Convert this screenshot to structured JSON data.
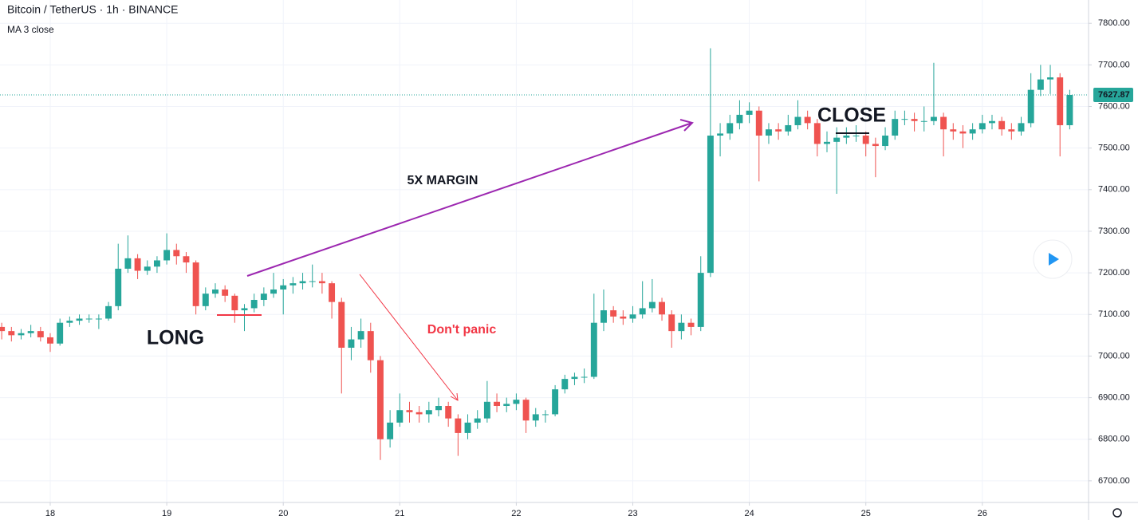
{
  "chart_data": {
    "type": "candlestick",
    "title": "Bitcoin / TetherUS · 1h · BINANCE",
    "indicator": "MA 3 close",
    "up_color": "#26a69a",
    "down_color": "#ef5350",
    "xlim": [
      -10.35,
      213.88
    ],
    "xticks": [
      {
        "value": 0,
        "label": "18"
      },
      {
        "value": 24,
        "label": "19"
      },
      {
        "value": 48,
        "label": "20"
      },
      {
        "value": 72,
        "label": "21"
      },
      {
        "value": 96,
        "label": "22"
      },
      {
        "value": 120,
        "label": "23"
      },
      {
        "value": 144,
        "label": "24"
      },
      {
        "value": 168,
        "label": "25"
      },
      {
        "value": 192,
        "label": "26"
      }
    ],
    "ylim": [
      6648,
      7856
    ],
    "yticks": [
      {
        "value": 6700,
        "label": "6700.00"
      },
      {
        "value": 6800,
        "label": "6800.00"
      },
      {
        "value": 6900,
        "label": "6900.00"
      },
      {
        "value": 7000,
        "label": "7000.00"
      },
      {
        "value": 7100,
        "label": "7100.00"
      },
      {
        "value": 7200,
        "label": "7200.00"
      },
      {
        "value": 7300,
        "label": "7300.00"
      },
      {
        "value": 7400,
        "label": "7400.00"
      },
      {
        "value": 7500,
        "label": "7500.00"
      },
      {
        "value": 7600,
        "label": "7600.00"
      },
      {
        "value": 7700,
        "label": "7700.00"
      },
      {
        "value": 7800,
        "label": "7800.00"
      }
    ],
    "grid": true,
    "current_price": 7627.87,
    "annotations": {
      "long": "LONG",
      "close": "CLOSE",
      "margin": "5X MARGIN",
      "panic": "Don't panic"
    },
    "x": [
      -10,
      -8,
      -6,
      -4,
      -2,
      0,
      2,
      4,
      6,
      8,
      10,
      12,
      14,
      16,
      18,
      20,
      22,
      24,
      26,
      28,
      30,
      32,
      34,
      36,
      38,
      40,
      42,
      44,
      46,
      48,
      50,
      52,
      54,
      56,
      58,
      60,
      62,
      64,
      66,
      68,
      70,
      72,
      74,
      76,
      78,
      80,
      82,
      84,
      86,
      88,
      90,
      92,
      94,
      96,
      98,
      100,
      102,
      104,
      106,
      108,
      110,
      112,
      114,
      116,
      118,
      120,
      122,
      124,
      126,
      128,
      130,
      132,
      134,
      136,
      138,
      140,
      142,
      144,
      146,
      148,
      150,
      152,
      154,
      156,
      158,
      160,
      162,
      164,
      166,
      168,
      170,
      172,
      174,
      176,
      178,
      180,
      182,
      184,
      186,
      188,
      190,
      192,
      194,
      196,
      198,
      200,
      202,
      204,
      206,
      208,
      210
    ],
    "ohlc": [
      [
        7070,
        7080,
        7040,
        7060
      ],
      [
        7060,
        7070,
        7035,
        7050
      ],
      [
        7050,
        7065,
        7040,
        7055
      ],
      [
        7055,
        7075,
        7045,
        7060
      ],
      [
        7060,
        7070,
        7035,
        7045
      ],
      [
        7045,
        7055,
        7010,
        7030
      ],
      [
        7030,
        7090,
        7025,
        7080
      ],
      [
        7080,
        7095,
        7070,
        7085
      ],
      [
        7085,
        7100,
        7075,
        7090
      ],
      [
        7090,
        7100,
        7080,
        7090
      ],
      [
        7090,
        7100,
        7065,
        7090
      ],
      [
        7090,
        7130,
        7085,
        7120
      ],
      [
        7120,
        7270,
        7110,
        7210
      ],
      [
        7210,
        7290,
        7200,
        7235
      ],
      [
        7235,
        7245,
        7185,
        7205
      ],
      [
        7205,
        7230,
        7195,
        7215
      ],
      [
        7215,
        7240,
        7200,
        7230
      ],
      [
        7230,
        7295,
        7220,
        7255
      ],
      [
        7255,
        7270,
        7220,
        7240
      ],
      [
        7240,
        7250,
        7200,
        7225
      ],
      [
        7225,
        7230,
        7100,
        7120
      ],
      [
        7120,
        7165,
        7110,
        7150
      ],
      [
        7150,
        7175,
        7140,
        7160
      ],
      [
        7160,
        7170,
        7130,
        7145
      ],
      [
        7145,
        7150,
        7080,
        7110
      ],
      [
        7110,
        7125,
        7060,
        7115
      ],
      [
        7115,
        7150,
        7105,
        7135
      ],
      [
        7135,
        7165,
        7120,
        7150
      ],
      [
        7150,
        7200,
        7140,
        7160
      ],
      [
        7160,
        7185,
        7100,
        7170
      ],
      [
        7170,
        7190,
        7150,
        7175
      ],
      [
        7175,
        7200,
        7160,
        7180
      ],
      [
        7180,
        7220,
        7165,
        7180
      ],
      [
        7180,
        7200,
        7150,
        7175
      ],
      [
        7175,
        7180,
        7090,
        7130
      ],
      [
        7130,
        7140,
        6910,
        7020
      ],
      [
        7020,
        7070,
        6990,
        7040
      ],
      [
        7040,
        7090,
        7020,
        7060
      ],
      [
        7060,
        7080,
        6960,
        6990
      ],
      [
        6990,
        7000,
        6750,
        6800
      ],
      [
        6800,
        6870,
        6780,
        6840
      ],
      [
        6840,
        6910,
        6830,
        6870
      ],
      [
        6870,
        6890,
        6840,
        6865
      ],
      [
        6865,
        6880,
        6840,
        6860
      ],
      [
        6860,
        6890,
        6840,
        6870
      ],
      [
        6870,
        6900,
        6855,
        6880
      ],
      [
        6880,
        6890,
        6830,
        6850
      ],
      [
        6850,
        6860,
        6760,
        6815
      ],
      [
        6815,
        6860,
        6800,
        6840
      ],
      [
        6840,
        6870,
        6825,
        6850
      ],
      [
        6850,
        6940,
        6840,
        6890
      ],
      [
        6890,
        6910,
        6865,
        6880
      ],
      [
        6880,
        6900,
        6865,
        6885
      ],
      [
        6885,
        6910,
        6870,
        6895
      ],
      [
        6895,
        6900,
        6815,
        6845
      ],
      [
        6845,
        6875,
        6830,
        6860
      ],
      [
        6860,
        6870,
        6840,
        6860
      ],
      [
        6860,
        6930,
        6855,
        6920
      ],
      [
        6920,
        6955,
        6910,
        6945
      ],
      [
        6945,
        6960,
        6930,
        6950
      ],
      [
        6950,
        6970,
        6935,
        6950
      ],
      [
        6950,
        7150,
        6945,
        7080
      ],
      [
        7080,
        7160,
        7060,
        7110
      ],
      [
        7110,
        7120,
        7080,
        7095
      ],
      [
        7095,
        7110,
        7075,
        7090
      ],
      [
        7090,
        7120,
        7080,
        7100
      ],
      [
        7100,
        7180,
        7090,
        7115
      ],
      [
        7115,
        7185,
        7105,
        7130
      ],
      [
        7130,
        7140,
        7085,
        7100
      ],
      [
        7100,
        7110,
        7020,
        7060
      ],
      [
        7060,
        7100,
        7040,
        7080
      ],
      [
        7080,
        7090,
        7050,
        7070
      ],
      [
        7070,
        7240,
        7060,
        7200
      ],
      [
        7200,
        7740,
        7190,
        7530
      ],
      [
        7530,
        7560,
        7480,
        7535
      ],
      [
        7535,
        7580,
        7520,
        7560
      ],
      [
        7560,
        7615,
        7545,
        7580
      ],
      [
        7580,
        7610,
        7560,
        7590
      ],
      [
        7590,
        7600,
        7420,
        7530
      ],
      [
        7530,
        7560,
        7510,
        7545
      ],
      [
        7545,
        7560,
        7520,
        7540
      ],
      [
        7540,
        7580,
        7530,
        7555
      ],
      [
        7555,
        7615,
        7545,
        7575
      ],
      [
        7575,
        7590,
        7545,
        7560
      ],
      [
        7560,
        7570,
        7480,
        7510
      ],
      [
        7510,
        7540,
        7490,
        7515
      ],
      [
        7515,
        7550,
        7390,
        7525
      ],
      [
        7525,
        7550,
        7510,
        7530
      ],
      [
        7530,
        7555,
        7515,
        7530
      ],
      [
        7530,
        7540,
        7480,
        7510
      ],
      [
        7510,
        7525,
        7430,
        7505
      ],
      [
        7505,
        7550,
        7495,
        7530
      ],
      [
        7530,
        7590,
        7520,
        7570
      ],
      [
        7570,
        7590,
        7555,
        7570
      ],
      [
        7570,
        7585,
        7540,
        7565
      ],
      [
        7565,
        7600,
        7540,
        7565
      ],
      [
        7565,
        7705,
        7555,
        7575
      ],
      [
        7575,
        7585,
        7480,
        7545
      ],
      [
        7545,
        7560,
        7520,
        7540
      ],
      [
        7540,
        7555,
        7500,
        7535
      ],
      [
        7535,
        7560,
        7520,
        7545
      ],
      [
        7545,
        7580,
        7535,
        7560
      ],
      [
        7560,
        7580,
        7545,
        7565
      ],
      [
        7565,
        7575,
        7530,
        7545
      ],
      [
        7545,
        7560,
        7520,
        7540
      ],
      [
        7540,
        7575,
        7530,
        7560
      ],
      [
        7560,
        7680,
        7550,
        7640
      ],
      [
        7640,
        7700,
        7625,
        7665
      ],
      [
        7665,
        7700,
        7630,
        7670
      ],
      [
        7670,
        7680,
        7480,
        7555
      ],
      [
        7555,
        7640,
        7545,
        7627.87
      ]
    ]
  }
}
